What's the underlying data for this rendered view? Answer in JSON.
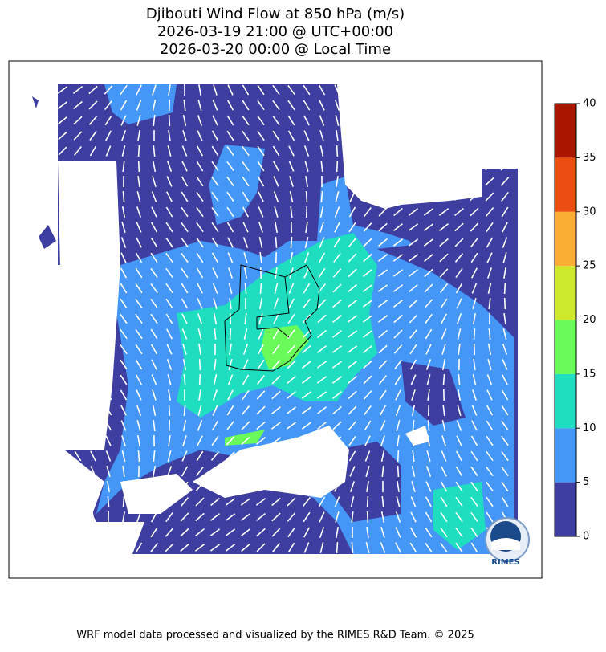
{
  "title": [
    "Djibouti Wind Flow at 850 hPa (m/s)",
    "2026-03-19 21:00 @ UTC+00:00",
    "2026-03-20 00:00 @ Local Time"
  ],
  "colorbar": {
    "ticks": [
      0,
      5,
      10,
      15,
      20,
      25,
      30,
      35,
      40
    ],
    "colors": [
      "#3e3ea0",
      "#4497f6",
      "#1edebf",
      "#6afb5b",
      "#cee92c",
      "#fbae34",
      "#eb4e10",
      "#a91701"
    ]
  },
  "logo": "RIMES",
  "footer": "WRF model data processed and visualized by the RIMES R&D Team. © 2025"
}
